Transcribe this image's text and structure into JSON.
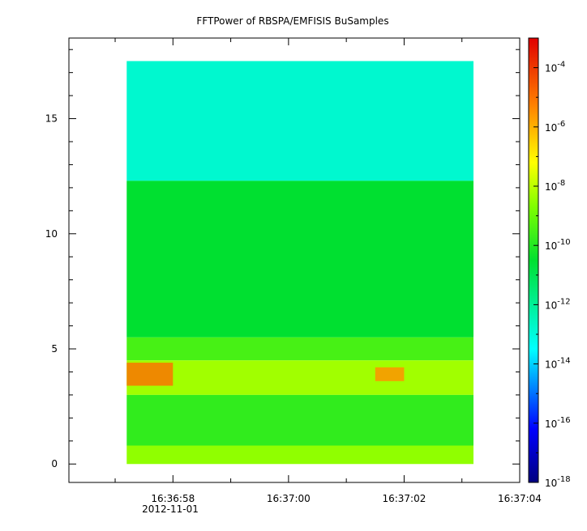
{
  "chart_data": {
    "type": "heatmap",
    "title": "FFTPower of RBSPA/EMFISIS  BuSamples",
    "xlabel": "",
    "ylabel": "",
    "x_tick_labels": [
      "16:36:58",
      "16:37:00",
      "16:37:02",
      "16:37:04"
    ],
    "x_date_label": "2012-11-01",
    "x_range": [
      "16:36:56.2",
      "16:37:04.0"
    ],
    "data_x_range": [
      "16:36:57.2",
      "16:37:03.2"
    ],
    "y_ticks": [
      0,
      5,
      10,
      15
    ],
    "y_range": [
      -0.8,
      18.5
    ],
    "data_y_range": [
      0,
      17.5
    ],
    "colorbar": {
      "scale": "log",
      "range": [
        1e-18,
        0.001
      ],
      "tick_exponents": [
        -4,
        -6,
        -8,
        -10,
        -12,
        -14,
        -16,
        -18
      ],
      "tick_base": "10"
    },
    "bands": [
      {
        "y": [
          12.3,
          17.5
        ],
        "level_exp": -12.8
      },
      {
        "y": [
          5.5,
          12.3
        ],
        "level_exp": -10.5
      },
      {
        "y": [
          4.5,
          5.5
        ],
        "level_exp": -9.5
      },
      {
        "y": [
          3.0,
          4.5
        ],
        "level_exp": -8.3
      },
      {
        "y": [
          0.8,
          3.0
        ],
        "level_exp": -9.8
      },
      {
        "y": [
          0.0,
          0.8
        ],
        "level_exp": -8.5
      }
    ],
    "hotspots": [
      {
        "x": [
          "16:36:57.2",
          "16:36:58.0"
        ],
        "y": [
          3.4,
          4.4
        ],
        "level_exp": -5
      },
      {
        "x": [
          "16:37:01.5",
          "16:37:02.0"
        ],
        "y": [
          3.6,
          4.2
        ],
        "level_exp": -5.5
      }
    ]
  }
}
